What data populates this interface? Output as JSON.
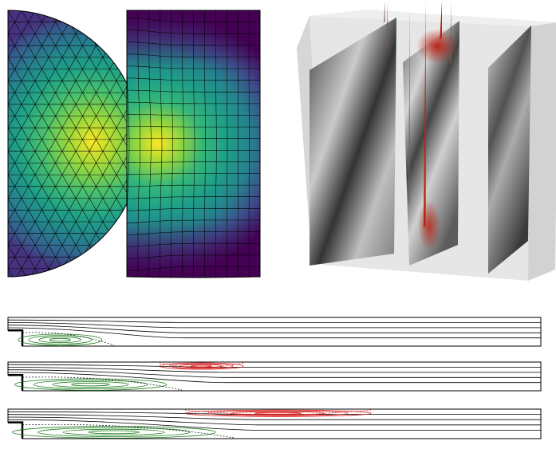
{
  "figure": {
    "panels": [
      {
        "id": "mesh-2d",
        "kind": "heatmap-on-mesh",
        "colormap": "viridis",
        "regions": [
          "triangular-mesh-half-disk",
          "quadrilateral-mesh-rectangle"
        ]
      },
      {
        "id": "volume-3d",
        "kind": "slice-planes-with-vector-glyphs",
        "slice_count": 3,
        "glyph_color": "#b82810"
      },
      {
        "id": "channel-flows",
        "kind": "streamline-contours",
        "rows": 3,
        "colors": {
          "streamline": "#000000",
          "lower_vortex": "#1a7a1a",
          "upper_vortex": "#d81a1a"
        }
      }
    ]
  }
}
